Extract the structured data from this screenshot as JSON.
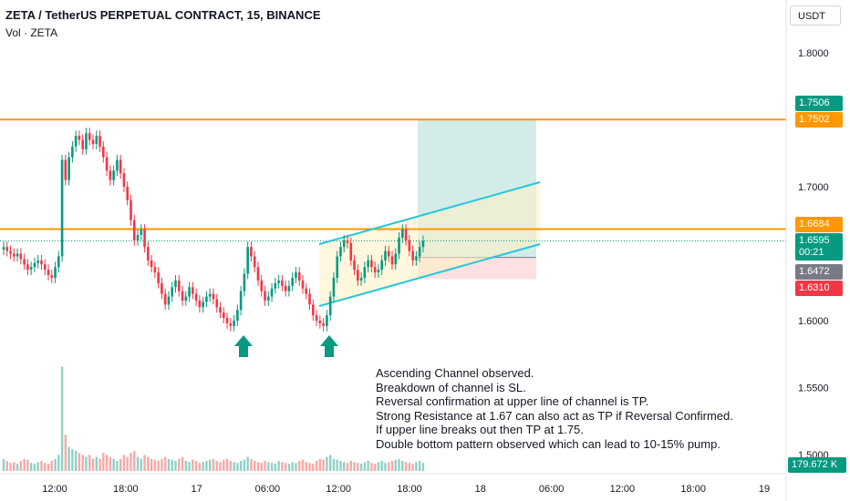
{
  "header": {
    "title": "ZETA / TetherUS PERPETUAL CONTRACT, 15, BINANCE",
    "volume_label": "Vol · ZETA"
  },
  "price_axis": {
    "unit": "USDT",
    "ticks": [
      "1.8000",
      "1.7000",
      "1.6000",
      "1.5500",
      "1.5000"
    ]
  },
  "time_axis": {
    "ticks": [
      "12:00",
      "18:00",
      "17",
      "06:00",
      "12:00",
      "18:00",
      "18",
      "06:00",
      "12:00",
      "18:00",
      "19"
    ]
  },
  "badges": [
    {
      "value": "1.7506",
      "color": "#089981"
    },
    {
      "value": "1.7502",
      "color": "#ff9800"
    },
    {
      "value": "1.6684",
      "color": "#ff9800"
    },
    {
      "value": "1.6595",
      "sub": "00:21",
      "color": "#089981"
    },
    {
      "value": "1.6472",
      "color": "#787b86"
    },
    {
      "value": "1.6310",
      "color": "#f23645"
    },
    {
      "value": "179.672 K",
      "color": "#089981"
    }
  ],
  "annotation": [
    "Ascending Channel observed.",
    "Breakdown of channel is SL.",
    "Reversal confirmation at upper line of channel is TP.",
    "Strong Resistance at 1.67 can also act as TP if Reversal Confirmed.",
    "If upper line breaks out then TP at 1.75.",
    "Double bottom pattern observed which can lead to 10-15% pump."
  ],
  "colors": {
    "up": "#089981",
    "down": "#f23645",
    "resistance": "#ff9800",
    "channel": "#26c6da",
    "arrow": "#089981"
  },
  "chart_data": {
    "type": "candlestick",
    "title": "ZETA / TetherUS PERPETUAL CONTRACT, 15, BINANCE",
    "ylim": [
      1.49,
      1.83
    ],
    "horizontal_levels": [
      1.7502,
      1.6684
    ],
    "current_price": 1.6595,
    "position": {
      "entry": 1.6472,
      "target": 1.7506,
      "stop": 1.631
    },
    "closes": [
      1.655,
      1.652,
      1.65,
      1.648,
      1.65,
      1.646,
      1.642,
      1.638,
      1.64,
      1.643,
      1.645,
      1.642,
      1.638,
      1.634,
      1.632,
      1.64,
      1.648,
      1.72,
      1.705,
      1.722,
      1.73,
      1.738,
      1.735,
      1.728,
      1.74,
      1.735,
      1.732,
      1.738,
      1.73,
      1.722,
      1.712,
      1.705,
      1.712,
      1.72,
      1.71,
      1.7,
      1.69,
      1.675,
      1.66,
      1.664,
      1.668,
      1.655,
      1.645,
      1.64,
      1.636,
      1.628,
      1.62,
      1.612,
      1.618,
      1.625,
      1.63,
      1.622,
      1.615,
      1.618,
      1.625,
      1.62,
      1.615,
      1.61,
      1.614,
      1.618,
      1.62,
      1.616,
      1.61,
      1.606,
      1.602,
      1.598,
      1.596,
      1.6,
      1.608,
      1.622,
      1.635,
      1.655,
      1.648,
      1.64,
      1.63,
      1.622,
      1.615,
      1.618,
      1.624,
      1.628,
      1.63,
      1.626,
      1.622,
      1.626,
      1.632,
      1.636,
      1.63,
      1.624,
      1.62,
      1.612,
      1.604,
      1.6,
      1.598,
      1.596,
      1.604,
      1.618,
      1.632,
      1.648,
      1.655,
      1.66,
      1.658,
      1.645,
      1.638,
      1.63,
      1.632,
      1.64,
      1.645,
      1.64,
      1.636,
      1.638,
      1.645,
      1.652,
      1.648,
      1.642,
      1.65,
      1.662,
      1.668,
      1.66,
      1.652,
      1.645,
      1.648,
      1.655,
      1.6595
    ],
    "volumes": [
      30,
      25,
      20,
      22,
      18,
      25,
      30,
      28,
      20,
      18,
      22,
      25,
      20,
      18,
      25,
      30,
      40,
      260,
      90,
      60,
      55,
      50,
      45,
      40,
      35,
      40,
      30,
      35,
      30,
      45,
      40,
      35,
      30,
      25,
      30,
      40,
      35,
      45,
      50,
      35,
      30,
      40,
      35,
      30,
      28,
      25,
      30,
      35,
      30,
      28,
      25,
      30,
      35,
      25,
      22,
      28,
      25,
      20,
      22,
      25,
      28,
      30,
      25,
      22,
      28,
      30,
      25,
      22,
      20,
      25,
      28,
      35,
      30,
      25,
      22,
      20,
      25,
      22,
      20,
      18,
      25,
      22,
      20,
      18,
      22,
      20,
      25,
      28,
      22,
      20,
      18,
      25,
      30,
      28,
      35,
      40,
      30,
      28,
      25,
      22,
      20,
      25,
      22,
      20,
      18,
      22,
      25,
      20,
      18,
      22,
      25,
      20,
      22,
      25,
      28,
      30,
      25,
      22,
      20,
      18,
      22,
      25,
      20
    ],
    "volume_axis_value": "179.672 K"
  }
}
